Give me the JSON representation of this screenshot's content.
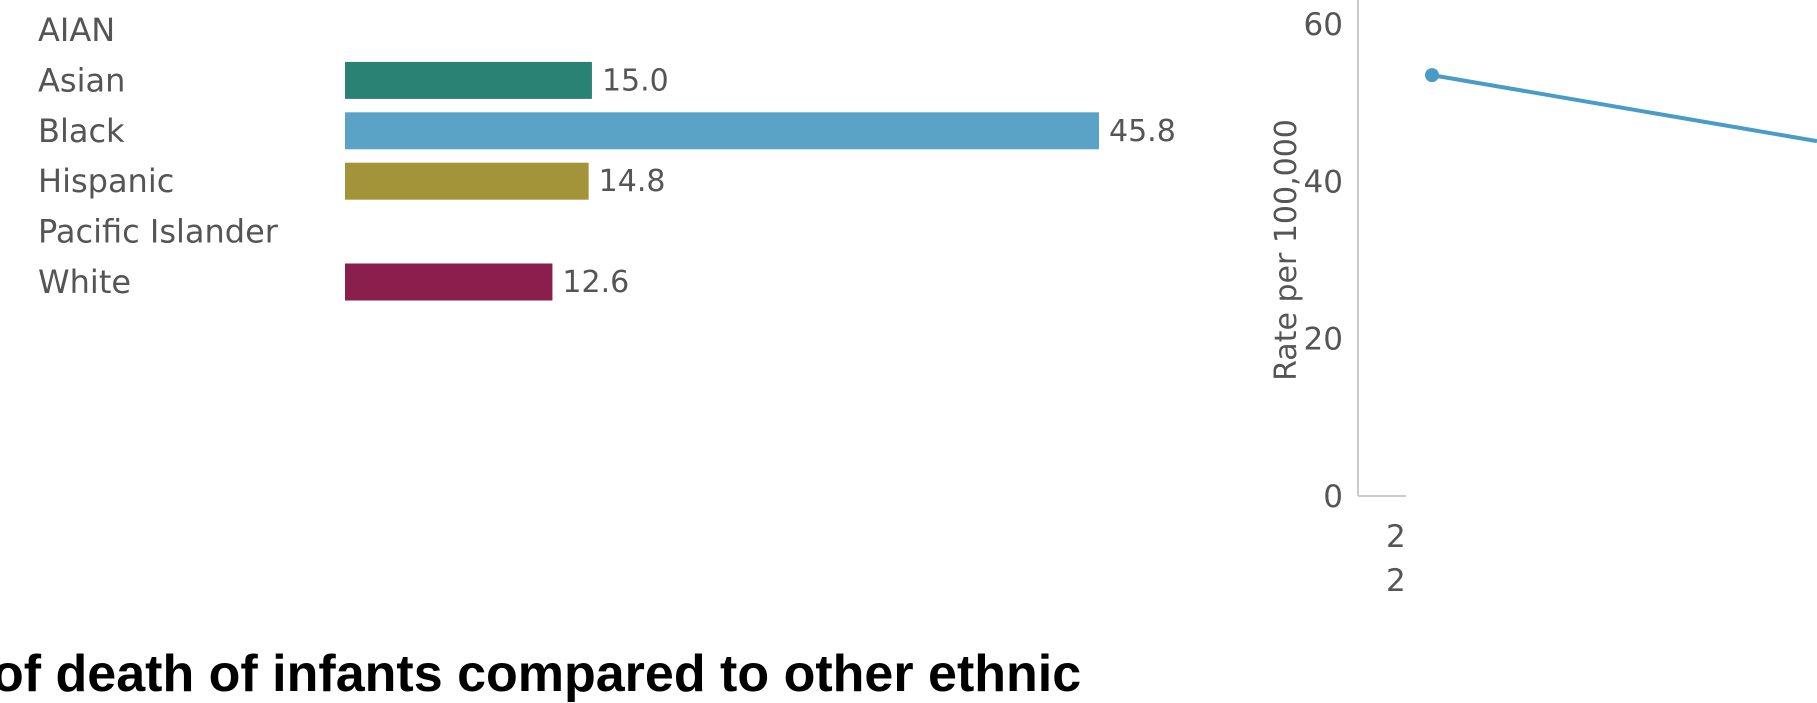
{
  "chart_data": [
    {
      "type": "bar",
      "orientation": "horizontal",
      "categories": [
        "AIAN",
        "Asian",
        "Black",
        "Hispanic",
        "Pacific Islander",
        "White"
      ],
      "values": [
        null,
        15.0,
        45.8,
        14.8,
        null,
        12.6
      ],
      "value_labels": [
        "",
        "15.0",
        "45.8",
        "14.8",
        "",
        "12.6"
      ],
      "colors": [
        "#2a8c7a",
        "#2a8274",
        "#5aa3c6",
        "#a39339",
        "#888888",
        "#8a1f4e"
      ],
      "xlim": [
        0,
        50
      ],
      "grid": false
    },
    {
      "type": "line",
      "ylabel": "Rate per 100,000",
      "ylim": [
        0,
        60
      ],
      "yticks": [
        "0",
        "20",
        "40",
        "60"
      ],
      "x_tick_fragments": [
        "2",
        "2"
      ],
      "color": "#4a9cc8",
      "series": [
        {
          "points": [
            {
              "y": 53.5
            }
          ]
        }
      ],
      "grid": false
    }
  ],
  "caption": {
    "text": "of death of infants compared to other ethnic"
  }
}
